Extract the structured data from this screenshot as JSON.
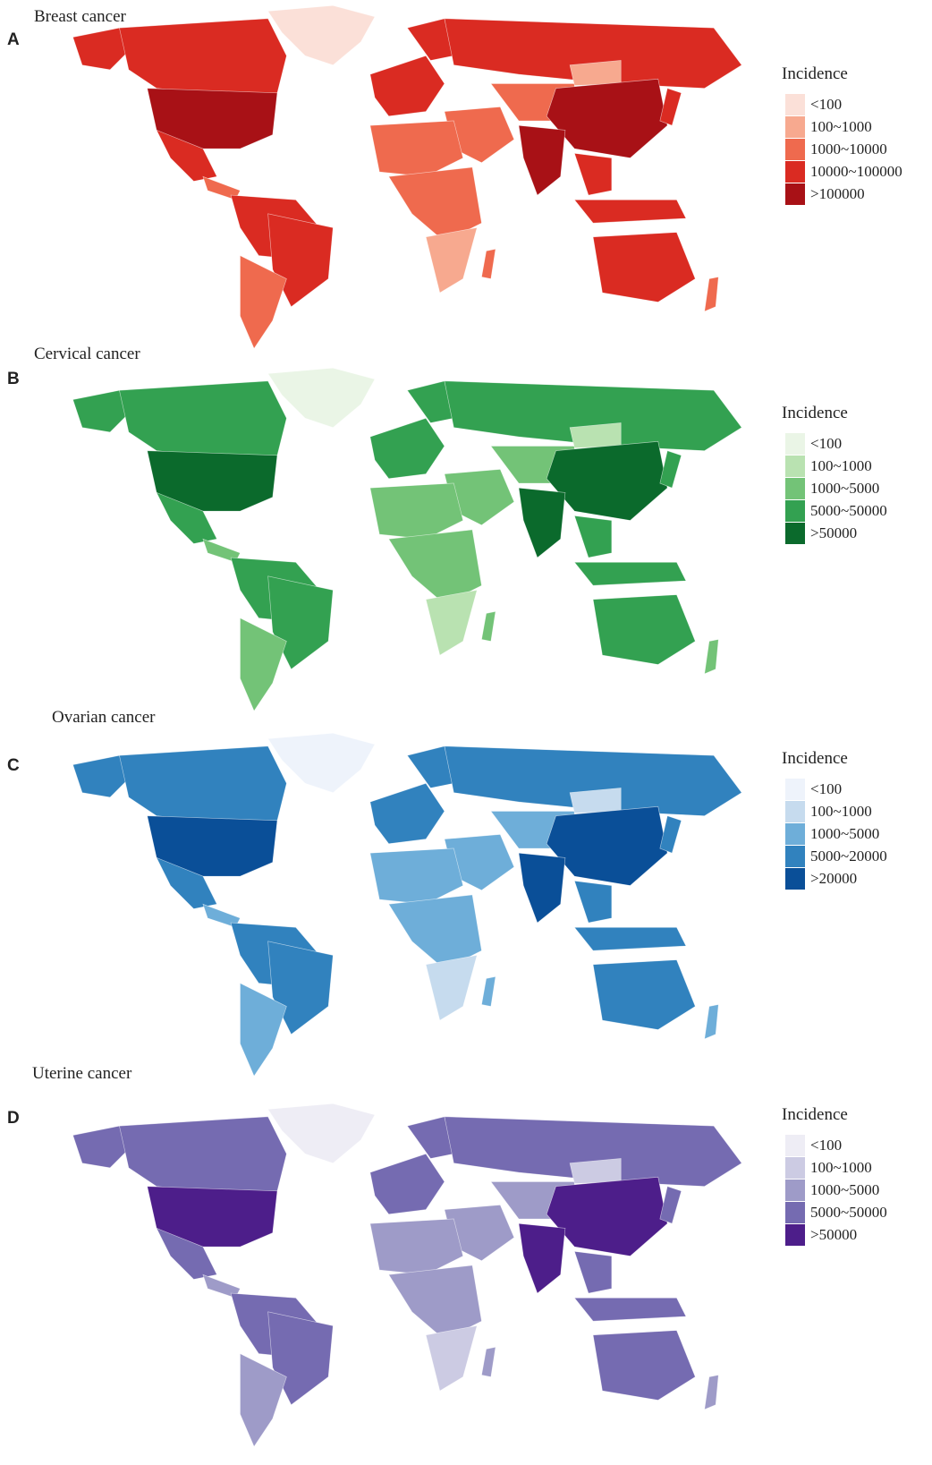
{
  "panels": [
    {
      "letter": "A",
      "title": "Breast cancer",
      "legend_title": "Incidence",
      "legend": [
        "<100",
        "100~1000",
        "1000~10000",
        "10000~100000",
        ">100000"
      ],
      "colors": [
        "#fbe0d8",
        "#f7a98f",
        "#ef6a4e",
        "#da2b22",
        "#a81116"
      ],
      "land_color": "#da2b22"
    },
    {
      "letter": "B",
      "title": "Cervical cancer",
      "legend_title": "Incidence",
      "legend": [
        "<100",
        "100~1000",
        "1000~5000",
        "5000~50000",
        ">50000"
      ],
      "colors": [
        "#eaf5e6",
        "#b9e2b1",
        "#73c377",
        "#33a151",
        "#0b6a2c"
      ],
      "land_color": "#33a151"
    },
    {
      "letter": "C",
      "title": "Ovarian cancer",
      "legend_title": "Incidence",
      "legend": [
        "<100",
        "100~1000",
        "1000~5000",
        "5000~20000",
        ">20000"
      ],
      "colors": [
        "#eef3fb",
        "#c6dbee",
        "#6eaed9",
        "#3182be",
        "#0a4f98"
      ],
      "land_color": "#3182be"
    },
    {
      "letter": "D",
      "title": "Uterine cancer",
      "legend_title": "Incidence",
      "legend": [
        "<100",
        "100~1000",
        "1000~5000",
        "5000~50000",
        ">50000"
      ],
      "colors": [
        "#eeedf5",
        "#cccbe3",
        "#9e9bc8",
        "#756bb1",
        "#4d1e8a"
      ],
      "land_color": "#756bb1"
    }
  ]
}
